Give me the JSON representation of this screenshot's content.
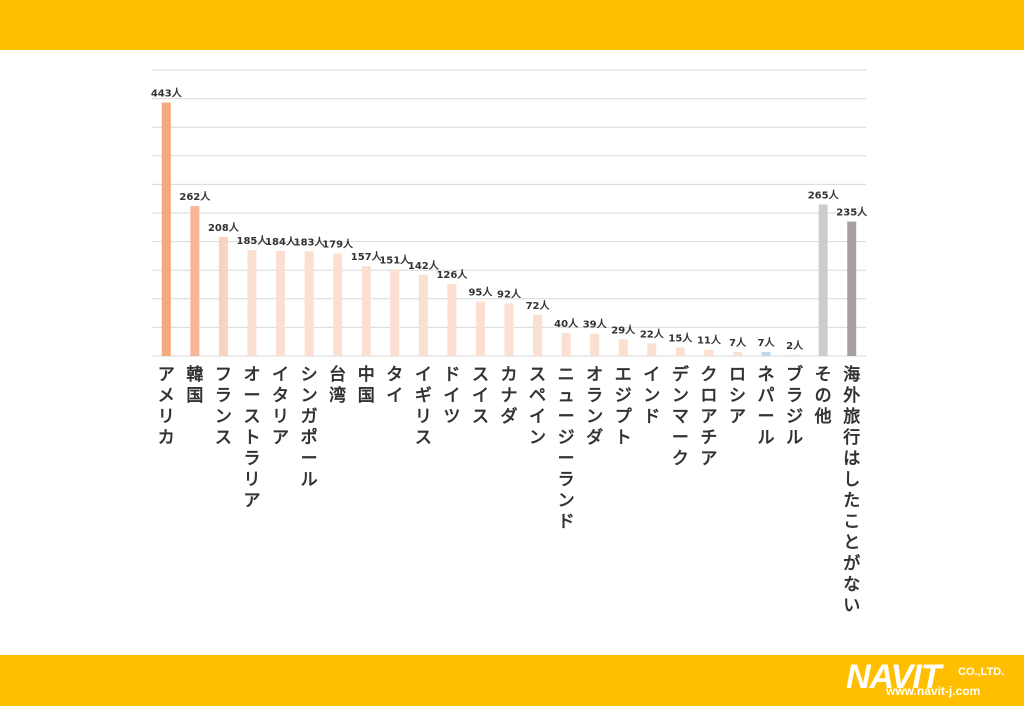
{
  "chart_data": {
    "type": "bar",
    "categories": [
      "アメリカ",
      "韓国",
      "フランス",
      "オーストラリア",
      "イタリア",
      "シンガポール",
      "台湾",
      "中国",
      "タイ",
      "イギリス",
      "ドイツ",
      "スイス",
      "カナダ",
      "スペイン",
      "ニュージーランド",
      "オランダ",
      "エジプト",
      "インド",
      "デンマーク",
      "クロアチア",
      "ロシア",
      "ネパール",
      "ブラジル",
      "その他",
      "海外旅行はしたことがない"
    ],
    "values": [
      443,
      262,
      208,
      185,
      184,
      183,
      179,
      157,
      151,
      142,
      126,
      95,
      92,
      72,
      40,
      39,
      29,
      22,
      15,
      11,
      7,
      7,
      2,
      265,
      235
    ],
    "data_labels": [
      "443人",
      "262人",
      "208人",
      "185人",
      "184人",
      "183人",
      "179人",
      "157人",
      "151人",
      "142人",
      "126人",
      "95人",
      "92人",
      "72人",
      "40人",
      "39人",
      "29人",
      "22人",
      "15人",
      "11人",
      "7人",
      "7人",
      "2人",
      "265人",
      "235人"
    ],
    "bar_colors": [
      "#F4A97F",
      "#F5B798",
      "#F9D3BF",
      "#FBDFD0",
      "#FBDFD0",
      "#FBDFD0",
      "#FBDFD0",
      "#FBDFD0",
      "#FBDFD0",
      "#FBDFD0",
      "#FBDFD0",
      "#FBDFD0",
      "#FBDFD0",
      "#FBDFD0",
      "#FBDFD0",
      "#FBDFD0",
      "#FBDFD0",
      "#FBDFD0",
      "#FBDFD0",
      "#FBDFD0",
      "#FBDFD0",
      "#BDD7EE",
      "#D9E6F5",
      "#CCCCCC",
      "#A6A19F"
    ],
    "ylim": [
      0,
      500
    ],
    "grid": true,
    "title": "",
    "xlabel": "",
    "ylabel": ""
  },
  "logo": {
    "name": "NAVIT",
    "suffix": "CO.,LTD.",
    "url": "www.navit-j.com"
  },
  "colors": {
    "band": "#FFBF00",
    "grid": "#D9D9D9",
    "label_text": "#333333"
  }
}
